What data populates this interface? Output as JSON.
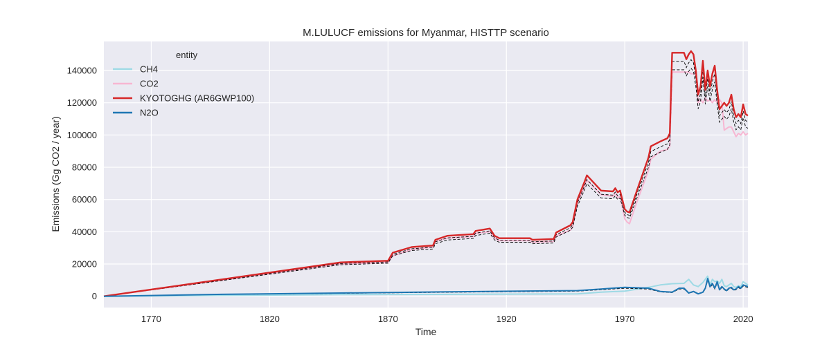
{
  "chart_data": {
    "type": "line",
    "title": "M.LULUCF emissions for Myanmar, HISTTP scenario",
    "xlabel": "Time",
    "ylabel": "Emissions (Gg CO2 / year)",
    "xlim": [
      1750,
      2022
    ],
    "ylim": [
      -7000,
      158000
    ],
    "xticks": [
      1770,
      1820,
      1870,
      1920,
      1970,
      2020
    ],
    "yticks": [
      0,
      20000,
      40000,
      60000,
      80000,
      100000,
      120000,
      140000
    ],
    "grid": true,
    "legend": {
      "title": "entity",
      "placement": "top-left"
    },
    "colors": {
      "background": "#eaeaf2",
      "grid": "#ffffff",
      "CH4": "#9edae5",
      "CO2": "#f7b6d2",
      "KYOTOGHG (AR6GWP100)": "#d62728",
      "N2O": "#1f77b4",
      "bounds": "#000000"
    },
    "series": [
      {
        "name": "CH4",
        "x": [
          1750,
          1800,
          1850,
          1900,
          1950,
          1960,
          1970,
          1980,
          1985,
          1990,
          1995,
          1997,
          1999,
          2001,
          2003,
          2005,
          2006,
          2007,
          2008,
          2009,
          2010,
          2011,
          2012,
          2013,
          2014,
          2015,
          2016,
          2017,
          2018,
          2019,
          2020,
          2021,
          2022
        ],
        "y": [
          0,
          500,
          1000,
          1200,
          1500,
          2500,
          3200,
          5500,
          7000,
          7800,
          8000,
          10500,
          7000,
          6000,
          8500,
          12500,
          7000,
          10500,
          9000,
          9500,
          8000,
          10500,
          6500,
          6000,
          7000,
          8000,
          6000,
          5500,
          6500,
          6000,
          9000,
          8000,
          7000
        ]
      },
      {
        "name": "CO2",
        "x": [
          1750,
          1850,
          1870,
          1872,
          1880,
          1889,
          1890,
          1895,
          1906,
          1907,
          1913,
          1915,
          1917,
          1930,
          1931,
          1940,
          1941,
          1947,
          1948,
          1950,
          1953,
          1954,
          1960,
          1965,
          1966,
          1967,
          1968,
          1970,
          1971,
          1972,
          1975,
          1980,
          1981,
          1985,
          1988,
          1989,
          1990,
          1997,
          1998,
          2000,
          2001,
          2002,
          2003,
          2004,
          2005,
          2006,
          2007,
          2008,
          2009,
          2010,
          2011,
          2012,
          2013,
          2014,
          2015,
          2016,
          2017,
          2018,
          2019,
          2020,
          2021,
          2022
        ],
        "y": [
          0,
          20000,
          21000,
          25000,
          29000,
          30500,
          34000,
          36000,
          37000,
          39000,
          40000,
          36000,
          34500,
          34500,
          33500,
          34000,
          37500,
          41000,
          43000,
          58000,
          68000,
          72000,
          63000,
          62000,
          64000,
          61000,
          62000,
          48000,
          46000,
          45000,
          58000,
          78000,
          85000,
          90000,
          91000,
          93000,
          139000,
          139000,
          138000,
          138000,
          120000,
          122000,
          120000,
          123000,
          121000,
          122000,
          120000,
          122000,
          120000,
          122000,
          120000,
          103000,
          104000,
          105000,
          105000,
          102000,
          99000,
          101000,
          100000,
          102000,
          100000,
          101000
        ]
      },
      {
        "name": "KYOTOGHG (AR6GWP100)",
        "x": [
          1750,
          1850,
          1870,
          1872,
          1880,
          1889,
          1890,
          1895,
          1906,
          1907,
          1913,
          1915,
          1917,
          1930,
          1931,
          1940,
          1941,
          1947,
          1948,
          1950,
          1953,
          1954,
          1960,
          1965,
          1966,
          1967,
          1968,
          1970,
          1971,
          1972,
          1975,
          1980,
          1981,
          1985,
          1988,
          1989,
          1990,
          1995,
          1996,
          1997,
          1998,
          1999,
          2000,
          2001,
          2002,
          2003,
          2004,
          2005,
          2006,
          2007,
          2008,
          2009,
          2010,
          2011,
          2012,
          2013,
          2014,
          2015,
          2016,
          2017,
          2018,
          2019,
          2020,
          2021,
          2022
        ],
        "y": [
          0,
          21000,
          22000,
          27000,
          30500,
          31500,
          35000,
          37500,
          38500,
          40500,
          42000,
          37500,
          36000,
          36000,
          35000,
          35500,
          39500,
          44000,
          46000,
          60000,
          71000,
          75000,
          65500,
          65000,
          67000,
          64500,
          65500,
          54000,
          52500,
          52000,
          65000,
          86000,
          93000,
          96000,
          98000,
          101000,
          151000,
          151000,
          147000,
          150000,
          152000,
          150000,
          140000,
          125000,
          130000,
          146000,
          128000,
          140000,
          130000,
          138000,
          143000,
          128000,
          116000,
          118000,
          120000,
          118000,
          120000,
          125000,
          116000,
          111000,
          113000,
          111000,
          119000,
          113000,
          112000
        ]
      },
      {
        "name": "N2O",
        "x": [
          1750,
          1800,
          1850,
          1900,
          1950,
          1960,
          1970,
          1980,
          1985,
          1990,
          1993,
          1995,
          1997,
          1999,
          2001,
          2003,
          2004,
          2005,
          2006,
          2007,
          2008,
          2009,
          2010,
          2011,
          2012,
          2013,
          2014,
          2015,
          2016,
          2017,
          2018,
          2019,
          2020,
          2021,
          2022
        ],
        "y": [
          0,
          1200,
          2000,
          2800,
          3500,
          4500,
          5500,
          5000,
          3000,
          2500,
          5000,
          5000,
          2000,
          3000,
          1500,
          2500,
          5000,
          11000,
          6000,
          8000,
          5000,
          9000,
          4000,
          6000,
          4500,
          3500,
          5000,
          5500,
          4000,
          4500,
          6000,
          5000,
          7000,
          6500,
          6000
        ]
      }
    ]
  }
}
